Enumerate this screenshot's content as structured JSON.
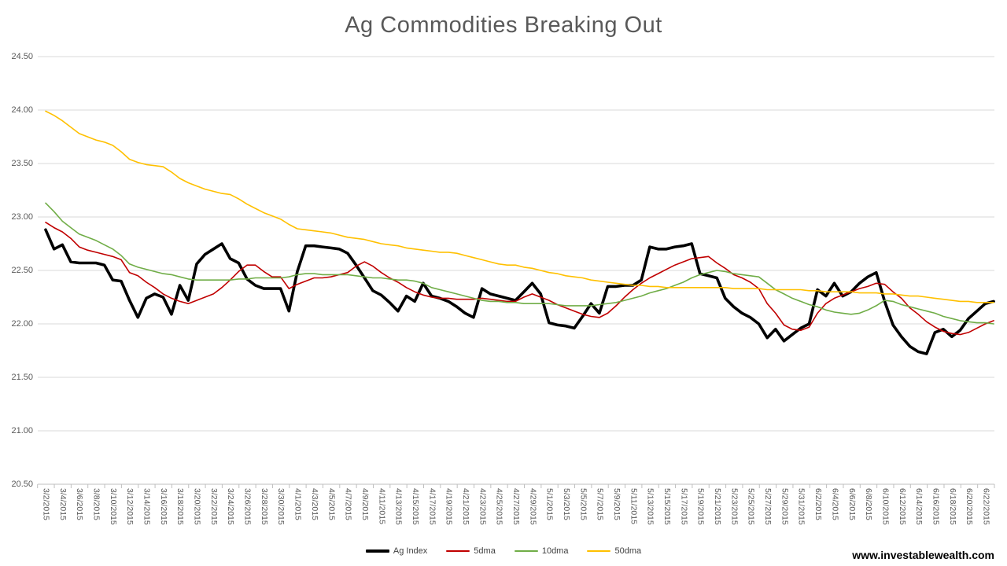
{
  "title": "Ag Commodities Breaking Out",
  "watermark": "www.investablewealth.com",
  "colors": {
    "title_text": "#595959",
    "axis_text": "#595959",
    "gridline": "#d9d9d9",
    "axis_line": "#bfbfbf",
    "ag_index": "#000000",
    "dma5": "#c00000",
    "dma10": "#70ad47",
    "dma50": "#ffc000"
  },
  "chart_data": {
    "type": "line",
    "title": "Ag Commodities Breaking Out",
    "xlabel": "",
    "ylabel": "",
    "ylim": [
      20.5,
      24.5
    ],
    "grid": "horizontal",
    "legend_position": "bottom",
    "y_tick_labels": [
      "24.50",
      "24.00",
      "23.50",
      "23.00",
      "22.50",
      "22.00",
      "21.50",
      "21.00",
      "20.50"
    ],
    "y_ticks": [
      24.5,
      24.0,
      23.5,
      23.0,
      22.5,
      22.0,
      21.5,
      21.0,
      20.5
    ],
    "x_tick_labels": [
      "3/2/2015",
      "3/4/2015",
      "3/6/2015",
      "3/8/2015",
      "3/10/2015",
      "3/12/2015",
      "3/14/2015",
      "3/16/2015",
      "3/18/2015",
      "3/20/2015",
      "3/22/2015",
      "3/24/2015",
      "3/26/2015",
      "3/28/2015",
      "3/30/2015",
      "4/1/2015",
      "4/3/2015",
      "4/5/2015",
      "4/7/2015",
      "4/9/2015",
      "4/11/2015",
      "4/13/2015",
      "4/15/2015",
      "4/17/2015",
      "4/19/2015",
      "4/21/2015",
      "4/23/2015",
      "4/25/2015",
      "4/27/2015",
      "4/29/2015",
      "5/1/2015",
      "5/3/2015",
      "5/5/2015",
      "5/7/2015",
      "5/9/2015",
      "5/11/2015",
      "5/13/2015",
      "5/15/2015",
      "5/17/2015",
      "5/19/2015",
      "5/21/2015",
      "5/23/2015",
      "5/25/2015",
      "5/27/2015",
      "5/29/2015",
      "5/31/2015",
      "6/2/2015",
      "6/4/2015",
      "6/6/2015",
      "6/8/2015",
      "6/10/2015",
      "6/12/2015",
      "6/14/2015",
      "6/16/2015",
      "6/18/2015",
      "6/20/2015",
      "6/22/2015"
    ],
    "x_labels_every_n_days": 2,
    "series": [
      {
        "name": "Ag Index",
        "color": "#000000",
        "width": 3.6,
        "values": [
          22.88,
          22.7,
          22.74,
          22.58,
          22.57,
          22.57,
          22.57,
          22.55,
          22.41,
          22.4,
          22.22,
          22.06,
          22.24,
          22.28,
          22.25,
          22.09,
          22.36,
          22.22,
          22.56,
          22.65,
          22.7,
          22.75,
          22.61,
          22.57,
          22.42,
          22.36,
          22.33,
          22.33,
          22.33,
          22.12,
          22.49,
          22.73,
          22.73,
          22.72,
          22.71,
          22.7,
          22.66,
          22.55,
          22.43,
          22.31,
          22.27,
          22.2,
          22.12,
          22.26,
          22.21,
          22.38,
          22.26,
          22.24,
          22.21,
          22.16,
          22.1,
          22.06,
          22.33,
          22.28,
          22.26,
          22.24,
          22.22,
          22.3,
          22.38,
          22.28,
          22.01,
          21.99,
          21.98,
          21.96,
          22.07,
          22.19,
          22.1,
          22.35,
          22.35,
          22.36,
          22.36,
          22.41,
          22.72,
          22.7,
          22.7,
          22.72,
          22.73,
          22.75,
          22.47,
          22.45,
          22.43,
          22.24,
          22.16,
          22.1,
          22.06,
          22.0,
          21.87,
          21.95,
          21.84,
          21.9,
          21.96,
          22.0,
          22.32,
          22.26,
          22.38,
          22.26,
          22.3,
          22.38,
          22.44,
          22.48,
          22.21,
          21.99,
          21.88,
          21.79,
          21.74,
          21.72,
          21.92,
          21.95,
          21.88,
          21.94,
          22.05,
          22.12,
          22.19,
          22.21
        ]
      },
      {
        "name": "5dma",
        "color": "#c00000",
        "width": 1.6,
        "values": [
          22.95,
          22.9,
          22.86,
          22.8,
          22.72,
          22.69,
          22.67,
          22.65,
          22.63,
          22.6,
          22.48,
          22.45,
          22.39,
          22.34,
          22.28,
          22.24,
          22.21,
          22.19,
          22.22,
          22.25,
          22.28,
          22.34,
          22.41,
          22.49,
          22.55,
          22.55,
          22.49,
          22.44,
          22.44,
          22.33,
          22.37,
          22.4,
          22.43,
          22.43,
          22.44,
          22.46,
          22.48,
          22.54,
          22.58,
          22.54,
          22.48,
          22.43,
          22.39,
          22.34,
          22.3,
          22.27,
          22.25,
          22.24,
          22.24,
          22.23,
          22.23,
          22.23,
          22.24,
          22.23,
          22.22,
          22.21,
          22.21,
          22.25,
          22.28,
          22.25,
          22.22,
          22.18,
          22.15,
          22.12,
          22.09,
          22.07,
          22.06,
          22.1,
          22.17,
          22.25,
          22.32,
          22.38,
          22.43,
          22.47,
          22.51,
          22.55,
          22.58,
          22.61,
          22.62,
          22.63,
          22.57,
          22.52,
          22.46,
          22.43,
          22.39,
          22.33,
          22.19,
          22.1,
          21.99,
          21.95,
          21.94,
          21.97,
          22.1,
          22.19,
          22.24,
          22.27,
          22.3,
          22.33,
          22.35,
          22.38,
          22.37,
          22.3,
          22.24,
          22.15,
          22.09,
          22.02,
          21.97,
          21.93,
          21.91,
          21.9,
          21.92,
          21.96,
          22.0,
          22.03
        ]
      },
      {
        "name": "10dma",
        "color": "#70ad47",
        "width": 1.6,
        "values": [
          23.13,
          23.05,
          22.96,
          22.9,
          22.84,
          22.81,
          22.78,
          22.74,
          22.7,
          22.64,
          22.56,
          22.53,
          22.51,
          22.49,
          22.47,
          22.46,
          22.44,
          22.42,
          22.41,
          22.41,
          22.41,
          22.41,
          22.41,
          22.42,
          22.42,
          22.43,
          22.43,
          22.43,
          22.43,
          22.44,
          22.46,
          22.47,
          22.47,
          22.46,
          22.46,
          22.46,
          22.46,
          22.45,
          22.44,
          22.43,
          22.43,
          22.42,
          22.41,
          22.41,
          22.4,
          22.38,
          22.34,
          22.32,
          22.3,
          22.28,
          22.26,
          22.24,
          22.22,
          22.21,
          22.21,
          22.2,
          22.2,
          22.19,
          22.19,
          22.19,
          22.19,
          22.18,
          22.17,
          22.17,
          22.17,
          22.17,
          22.18,
          22.19,
          22.2,
          22.22,
          22.24,
          22.26,
          22.29,
          22.31,
          22.33,
          22.36,
          22.39,
          22.43,
          22.46,
          22.48,
          22.5,
          22.49,
          22.47,
          22.46,
          22.45,
          22.44,
          22.38,
          22.32,
          22.28,
          22.24,
          22.21,
          22.18,
          22.16,
          22.13,
          22.11,
          22.1,
          22.09,
          22.1,
          22.13,
          22.17,
          22.22,
          22.21,
          22.18,
          22.16,
          22.14,
          22.12,
          22.1,
          22.07,
          22.05,
          22.03,
          22.02,
          22.01,
          22.01,
          22.0
        ]
      },
      {
        "name": "50dma",
        "color": "#ffc000",
        "width": 1.6,
        "values": [
          23.99,
          23.95,
          23.9,
          23.84,
          23.78,
          23.75,
          23.72,
          23.7,
          23.67,
          23.61,
          23.54,
          23.51,
          23.49,
          23.48,
          23.47,
          23.42,
          23.36,
          23.32,
          23.29,
          23.26,
          23.24,
          23.22,
          23.21,
          23.17,
          23.12,
          23.08,
          23.04,
          23.01,
          22.98,
          22.93,
          22.89,
          22.88,
          22.87,
          22.86,
          22.85,
          22.83,
          22.81,
          22.8,
          22.79,
          22.77,
          22.75,
          22.74,
          22.73,
          22.71,
          22.7,
          22.69,
          22.68,
          22.67,
          22.67,
          22.66,
          22.64,
          22.62,
          22.6,
          22.58,
          22.56,
          22.55,
          22.55,
          22.53,
          22.52,
          22.5,
          22.48,
          22.47,
          22.45,
          22.44,
          22.43,
          22.41,
          22.4,
          22.39,
          22.38,
          22.37,
          22.36,
          22.36,
          22.35,
          22.35,
          22.34,
          22.34,
          22.34,
          22.34,
          22.34,
          22.34,
          22.34,
          22.34,
          22.33,
          22.33,
          22.33,
          22.33,
          22.32,
          22.32,
          22.32,
          22.32,
          22.32,
          22.31,
          22.31,
          22.3,
          22.3,
          22.3,
          22.3,
          22.29,
          22.29,
          22.29,
          22.28,
          22.28,
          22.27,
          22.26,
          22.26,
          22.25,
          22.24,
          22.23,
          22.22,
          22.21,
          22.21,
          22.2,
          22.2,
          22.2
        ]
      }
    ]
  }
}
